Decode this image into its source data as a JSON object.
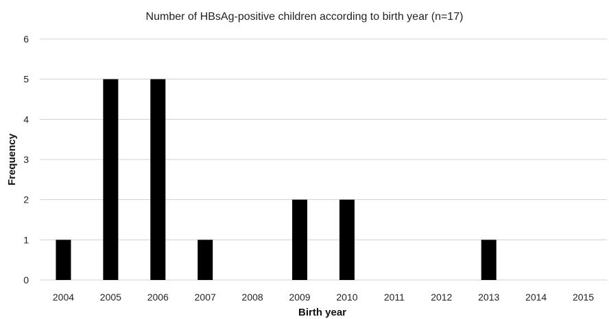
{
  "chart_data": {
    "type": "bar",
    "title": "Number of HBsAg-positive children according to birth year (n=17)",
    "xlabel": "Birth year",
    "ylabel": "Frequency",
    "categories": [
      "2004",
      "2005",
      "2006",
      "2007",
      "2008",
      "2009",
      "2010",
      "2011",
      "2012",
      "2013",
      "2014",
      "2015"
    ],
    "values": [
      1,
      5,
      5,
      1,
      0,
      2,
      2,
      0,
      0,
      1,
      0,
      0
    ],
    "ylim": [
      0,
      6
    ],
    "yticks": [
      "0",
      "1",
      "2",
      "3",
      "4",
      "5",
      "6"
    ],
    "grid": "horizontal",
    "legend": "none",
    "bar_color": "#000000"
  }
}
